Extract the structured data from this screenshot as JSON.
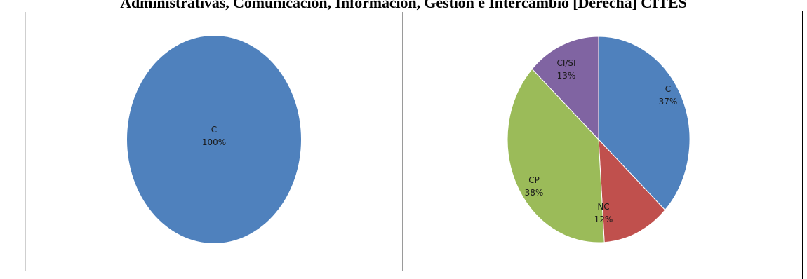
{
  "page_title": "Administrativas, Comunicación, Información, Gestión e Intercambio [Derecha] CITES",
  "chart_data": [
    {
      "type": "pie",
      "title": "",
      "slices": [
        {
          "label": "C",
          "value": 100,
          "pct_label": "100%",
          "color": "#4F81BD"
        }
      ]
    },
    {
      "type": "pie",
      "title": "",
      "slices": [
        {
          "label": "C",
          "value": 37,
          "pct_label": "37%",
          "color": "#4F81BD"
        },
        {
          "label": "NC",
          "value": 12,
          "pct_label": "12%",
          "color": "#C0504D"
        },
        {
          "label": "CP",
          "value": 38,
          "pct_label": "38%",
          "color": "#9BBB59"
        },
        {
          "label": "CI/SI",
          "value": 13,
          "pct_label": "13%",
          "color": "#8064A2"
        }
      ]
    }
  ]
}
